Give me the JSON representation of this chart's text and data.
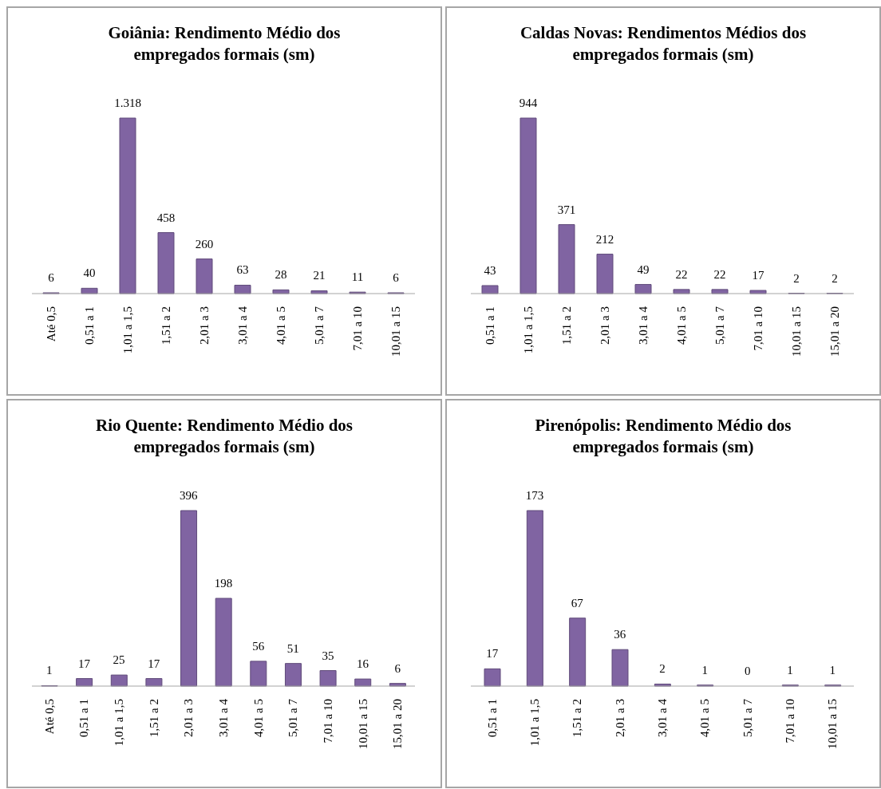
{
  "chart_data": [
    {
      "type": "bar",
      "title": "Goiânia: Rendimento Médio dos empregados formais (sm)",
      "categories": [
        "Até 0,5",
        "0,51 a 1",
        "1,01 a 1,5",
        "1,51 a 2",
        "2,01 a 3",
        "3,01 a 4",
        "4,01 a 5",
        "5,01 a 7",
        "7,01 a 10",
        "10,01 a 15"
      ],
      "values": [
        6,
        40,
        1318,
        458,
        260,
        63,
        28,
        21,
        11,
        6
      ],
      "value_labels": [
        "6",
        "40",
        "1.318",
        "458",
        "260",
        "63",
        "28",
        "21",
        "11",
        "6"
      ],
      "color": "#8064a2"
    },
    {
      "type": "bar",
      "title": "Caldas Novas: Rendimentos Médios dos empregados formais (sm)",
      "categories": [
        "0,51 a 1",
        "1,01 a 1,5",
        "1,51 a 2",
        "2,01 a 3",
        "3,01 a 4",
        "4,01 a 5",
        "5,01 a 7",
        "7,01 a 10",
        "10,01 a 15",
        "15,01 a 20"
      ],
      "values": [
        43,
        944,
        371,
        212,
        49,
        22,
        22,
        17,
        2,
        2
      ],
      "value_labels": [
        "43",
        "944",
        "371",
        "212",
        "49",
        "22",
        "22",
        "17",
        "2",
        "2"
      ],
      "color": "#8064a2"
    },
    {
      "type": "bar",
      "title": "Rio Quente: Rendimento Médio dos empregados formais (sm)",
      "categories": [
        "Até 0,5",
        "0,51 a 1",
        "1,01 a 1,5",
        "1,51 a 2",
        "2,01 a 3",
        "3,01 a 4",
        "4,01 a 5",
        "5,01 a 7",
        "7,01 a 10",
        "10,01 a 15",
        "15,01 a 20"
      ],
      "values": [
        1,
        17,
        25,
        17,
        396,
        198,
        56,
        51,
        35,
        16,
        6
      ],
      "value_labels": [
        "1",
        "17",
        "25",
        "17",
        "396",
        "198",
        "56",
        "51",
        "35",
        "16",
        "6"
      ],
      "color": "#8064a2"
    },
    {
      "type": "bar",
      "title": "Pirenópolis: Rendimento Médio dos empregados formais (sm)",
      "categories": [
        "0,51 a 1",
        "1,01 a 1,5",
        "1,51 a 2",
        "2,01 a 3",
        "3,01 a 4",
        "4,01 a 5",
        "5,01 a 7",
        "7,01 a 10",
        "10,01 a 15"
      ],
      "values": [
        17,
        173,
        67,
        36,
        2,
        1,
        0,
        1,
        1
      ],
      "value_labels": [
        "17",
        "173",
        "67",
        "36",
        "2",
        "1",
        "0",
        "1",
        "1"
      ],
      "color": "#8064a2"
    }
  ]
}
